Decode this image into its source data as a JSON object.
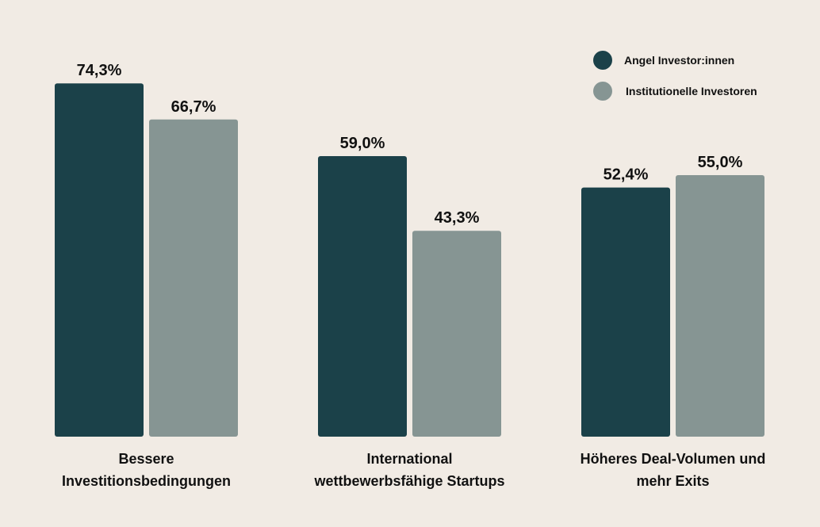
{
  "chart_data": {
    "type": "bar",
    "categories": [
      [
        "Bessere",
        "Investitionsbedingungen"
      ],
      [
        "International",
        "wettbewerbsfähige Startups"
      ],
      [
        "Höheres Deal-Volumen und",
        "mehr Exits"
      ]
    ],
    "series": [
      {
        "name": "Angel Investor:innen",
        "color": "#1b4149",
        "values": [
          74.3,
          59.0,
          52.4
        ],
        "labels": [
          "74,3%",
          "59,0%",
          "52,4%"
        ]
      },
      {
        "name": "Institutionelle Investoren",
        "color": "#869593",
        "values": [
          66.7,
          43.3,
          55.0
        ],
        "labels": [
          "66,7%",
          "43,3%",
          "55,0%"
        ]
      }
    ],
    "ylim": [
      0,
      100
    ],
    "unit": "%",
    "grid": false,
    "legend_position": "top-right",
    "title": "",
    "xlabel": "",
    "ylabel": ""
  }
}
